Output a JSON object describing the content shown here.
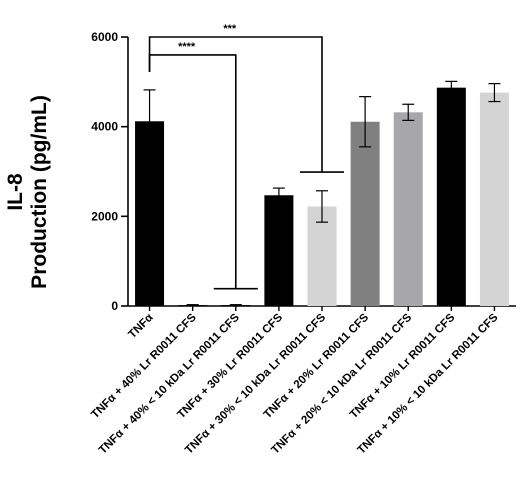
{
  "chart_data": {
    "type": "bar",
    "title": "",
    "ylabel_line1": "IL-8",
    "ylabel_line2": "Production (pg/mL)",
    "xlabel": "",
    "ylim": [
      0,
      6000
    ],
    "yticks": [
      0,
      2000,
      4000,
      6000
    ],
    "grid": false,
    "legend": "none",
    "categories": [
      "TNFα",
      "TNFα + 40% Lr R0011 CFS",
      "TNFα + 40% < 10 kDa Lr R0011 CFS",
      "TNFα + 30% Lr R0011 CFS",
      "TNFα + 30% < 10 kDa Lr R0011 CFS",
      "TNFα + 20% Lr R0011 CFS",
      "TNFα + 20% < 10 kDa Lr R0011 CFS",
      "TNFα + 10% Lr R0011 CFS",
      "TNFα + 10% < 10 kDa Lr R0011 CFS"
    ],
    "values": [
      4120,
      20,
      20,
      2470,
      2220,
      4110,
      4320,
      4870,
      4760
    ],
    "errors": [
      700,
      10,
      10,
      160,
      350,
      560,
      180,
      140,
      200
    ],
    "colors": [
      "#000000",
      "#000000",
      "#000000",
      "#000000",
      "#d4d4d4",
      "#808080",
      "#a6a6ab",
      "#000000",
      "#d4d4d4"
    ],
    "significance": [
      {
        "from": 0,
        "to": 4,
        "label": "***",
        "level": 6000
      },
      {
        "from": 0,
        "to": 2,
        "label": "****",
        "level": 5600
      }
    ]
  }
}
